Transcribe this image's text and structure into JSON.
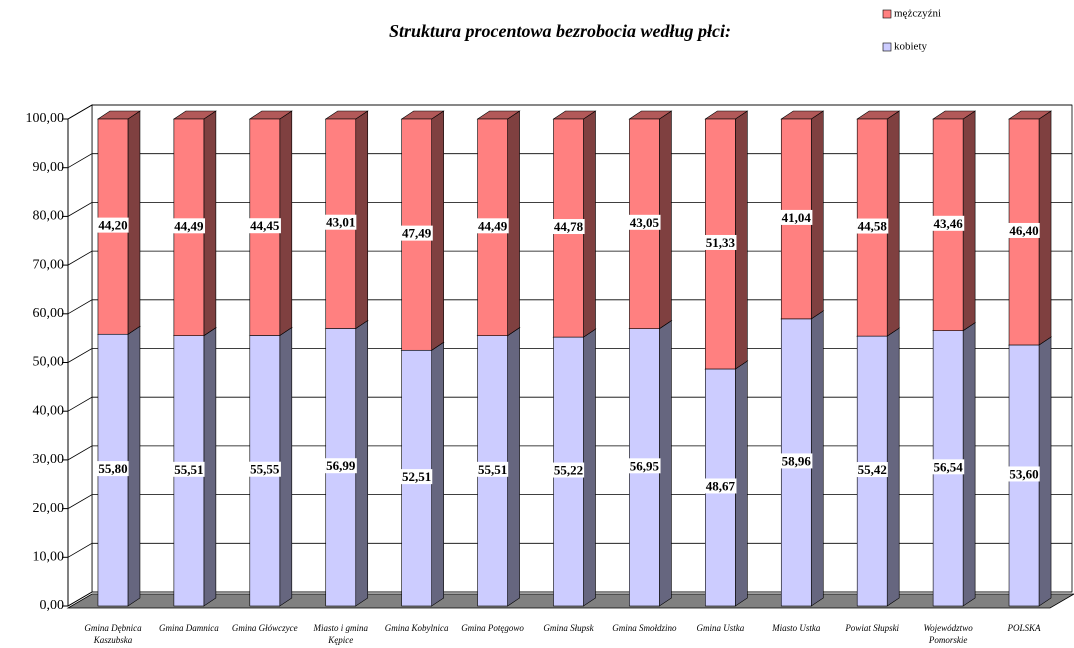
{
  "chart_data": {
    "type": "stacked-bar-3d",
    "title": "Struktura procentowa bezrobocia według płci:",
    "categories": [
      "Gmina Dębnica Kaszubska",
      "Gmina Damnica",
      "Gmina Główczyce",
      "Miasto i gmina Kępice",
      "Gmina Kobylnica",
      "Gmina Potęgowo",
      "Gmina Słupsk",
      "Gmina Smołdzino",
      "Gmina Ustka",
      "Miasto Ustka",
      "Powiat Słupski",
      "Województwo Pomorskie",
      "POLSKA"
    ],
    "series": [
      {
        "name": "kobiety",
        "color": "#ccccff",
        "values": [
          55.8,
          55.51,
          55.55,
          56.99,
          52.51,
          55.51,
          55.22,
          56.95,
          48.67,
          58.96,
          55.42,
          56.54,
          53.6
        ],
        "value_labels": [
          "55,80",
          "55,51",
          "55,55",
          "56,99",
          "52,51",
          "55,51",
          "55,22",
          "56,95",
          "48,67",
          "58,96",
          "55,42",
          "56,54",
          "53,60"
        ]
      },
      {
        "name": "mężczyźni",
        "color": "#ff8080",
        "values": [
          44.2,
          44.49,
          44.45,
          43.01,
          47.49,
          44.49,
          44.78,
          43.05,
          51.33,
          41.04,
          44.58,
          43.46,
          46.4
        ],
        "value_labels": [
          "44,20",
          "44,49",
          "44,45",
          "43,01",
          "47,49",
          "44,49",
          "44,78",
          "43,05",
          "51,33",
          "41,04",
          "44,58",
          "43,46",
          "46,40"
        ]
      }
    ],
    "ylim": [
      0,
      100
    ],
    "yticks": [
      {
        "value": 0,
        "label": "0,00"
      },
      {
        "value": 10,
        "label": "10,00"
      },
      {
        "value": 20,
        "label": "20,00"
      },
      {
        "value": 30,
        "label": "30,00"
      },
      {
        "value": 40,
        "label": "40,00"
      },
      {
        "value": 50,
        "label": "50,00"
      },
      {
        "value": 60,
        "label": "60,00"
      },
      {
        "value": 70,
        "label": "70,00"
      },
      {
        "value": 80,
        "label": "80,00"
      },
      {
        "value": 90,
        "label": "90,00"
      },
      {
        "value": 100,
        "label": "100,00"
      }
    ],
    "grid": true,
    "legend": "top-right"
  }
}
